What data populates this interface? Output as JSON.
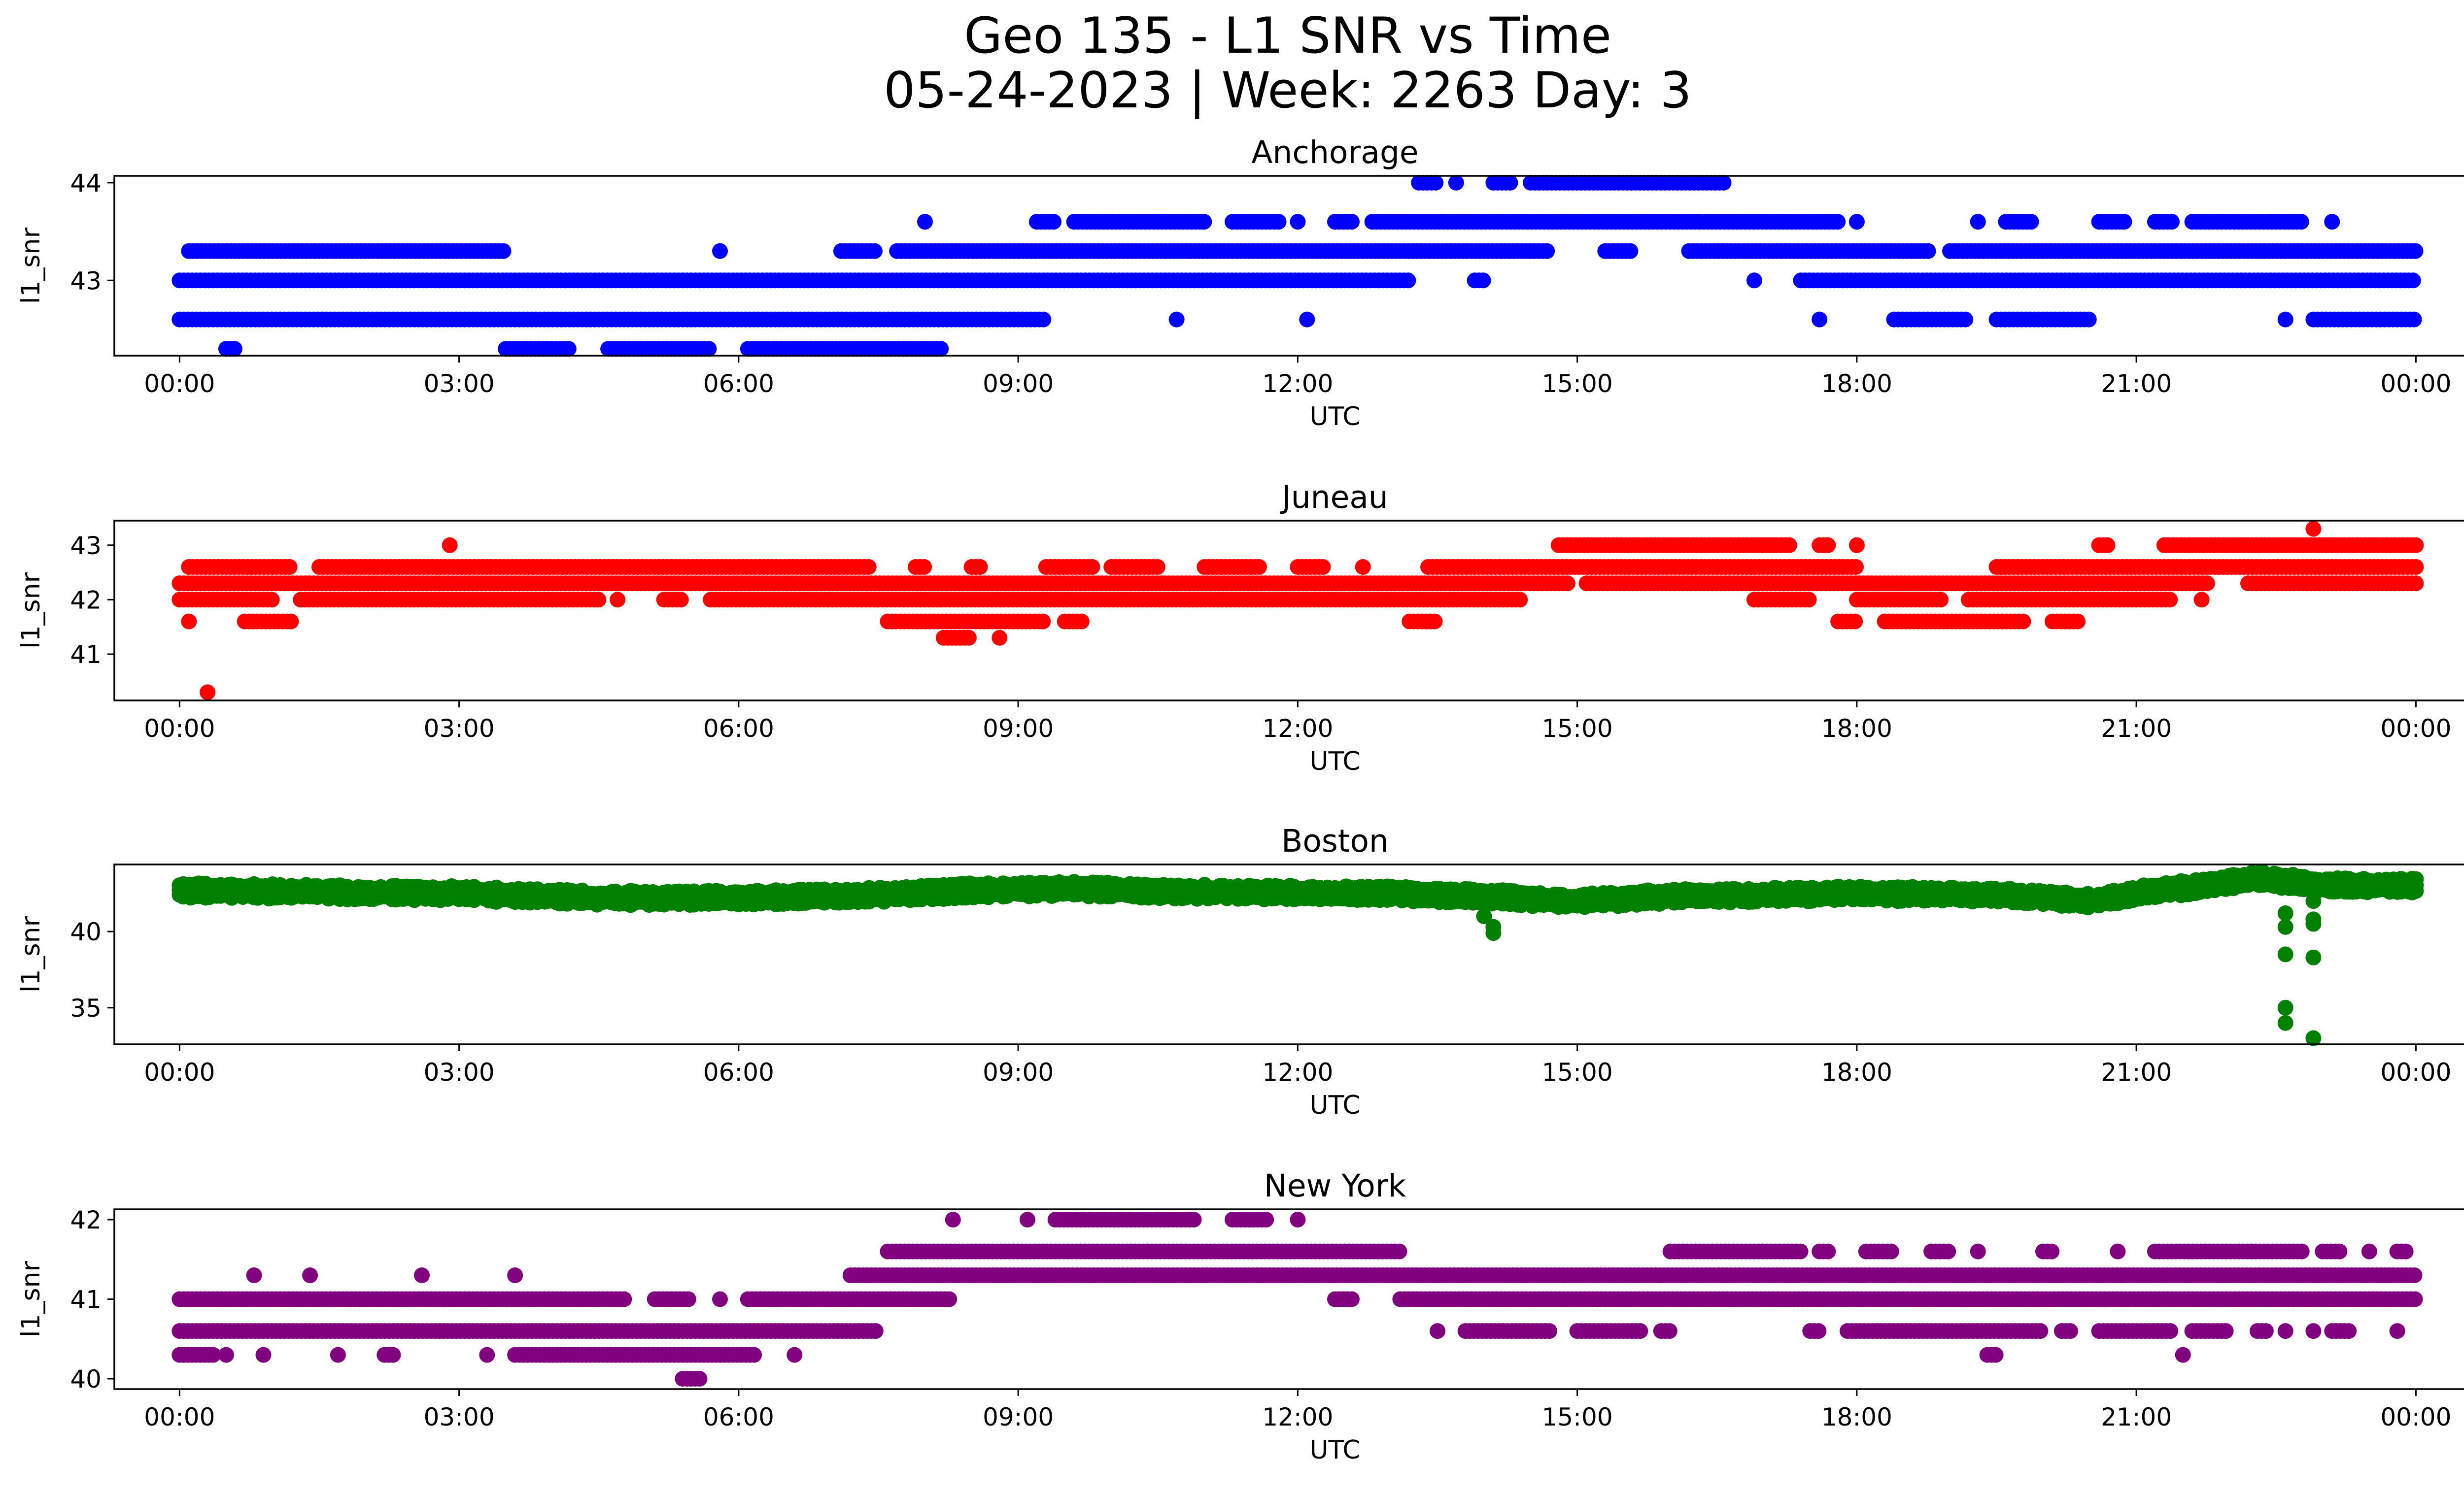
{
  "figure": {
    "title_line1": "Geo 135 - L1 SNR vs Time",
    "title_line2": "05-24-2023 | Week: 2263 Day: 3"
  },
  "chart_data": [
    {
      "type": "scatter",
      "title": "Anchorage",
      "xlabel": "UTC",
      "ylabel": "l1_snr",
      "color": "#0000ff",
      "x_ticks": [
        "00:00",
        "03:00",
        "06:00",
        "09:00",
        "12:00",
        "15:00",
        "18:00",
        "21:00",
        "00:00"
      ],
      "x_range_hours": [
        -0.7,
        25.5
      ],
      "y_ticks": [
        43,
        44
      ],
      "ylim": [
        42.23,
        44.07
      ],
      "levels": [
        {
          "y": 42.3,
          "segments": [
            [
              0.5,
              0.6
            ],
            [
              3.5,
              4.2
            ],
            [
              4.6,
              5.7
            ],
            [
              6.1,
              8.2
            ]
          ]
        },
        {
          "y": 42.6,
          "segments": [
            [
              0.0,
              9.3
            ],
            [
              10.7,
              10.7
            ],
            [
              12.1,
              12.1
            ],
            [
              17.6,
              17.6
            ],
            [
              18.4,
              19.2
            ],
            [
              19.5,
              20.5
            ],
            [
              22.6,
              22.6
            ],
            [
              22.9,
              24.0
            ]
          ]
        },
        {
          "y": 43.0,
          "segments": [
            [
              0.0,
              13.2
            ],
            [
              13.9,
              14.0
            ],
            [
              16.9,
              16.9
            ],
            [
              17.4,
              24.0
            ]
          ]
        },
        {
          "y": 43.3,
          "segments": [
            [
              0.1,
              3.5
            ],
            [
              5.8,
              5.8
            ],
            [
              7.1,
              7.5
            ],
            [
              7.7,
              14.7
            ],
            [
              15.3,
              15.6
            ],
            [
              16.2,
              18.8
            ],
            [
              19.0,
              24.0
            ]
          ]
        },
        {
          "y": 43.6,
          "segments": [
            [
              8.0,
              8.0
            ],
            [
              9.2,
              9.4
            ],
            [
              9.6,
              11.0
            ],
            [
              11.3,
              11.8
            ],
            [
              12.0,
              12.0
            ],
            [
              12.4,
              12.6
            ],
            [
              12.8,
              17.8
            ],
            [
              18.0,
              18.0
            ],
            [
              19.3,
              19.3
            ],
            [
              19.6,
              19.9
            ],
            [
              20.6,
              20.9
            ],
            [
              21.2,
              21.4
            ],
            [
              21.6,
              22.8
            ],
            [
              23.1,
              23.1
            ]
          ]
        },
        {
          "y": 44.0,
          "segments": [
            [
              13.3,
              13.5
            ],
            [
              13.7,
              13.7
            ],
            [
              14.1,
              14.3
            ],
            [
              14.5,
              16.6
            ]
          ]
        }
      ]
    },
    {
      "type": "scatter",
      "title": "Juneau",
      "xlabel": "UTC",
      "ylabel": "l1_snr",
      "color": "#ff0000",
      "x_ticks": [
        "00:00",
        "03:00",
        "06:00",
        "09:00",
        "12:00",
        "15:00",
        "18:00",
        "21:00",
        "00:00"
      ],
      "x_range_hours": [
        -0.7,
        25.5
      ],
      "y_ticks": [
        41,
        42,
        43
      ],
      "ylim": [
        40.15,
        43.45
      ],
      "levels": [
        {
          "y": 40.3,
          "segments": [
            [
              0.3,
              0.3
            ]
          ]
        },
        {
          "y": 41.3,
          "segments": [
            [
              8.2,
              8.5
            ],
            [
              8.8,
              8.8
            ]
          ]
        },
        {
          "y": 41.6,
          "segments": [
            [
              0.1,
              0.1
            ],
            [
              0.7,
              1.2
            ],
            [
              7.6,
              9.3
            ],
            [
              9.5,
              9.7
            ],
            [
              13.2,
              13.5
            ],
            [
              17.8,
              18.0
            ],
            [
              18.3,
              19.8
            ],
            [
              20.1,
              20.4
            ]
          ]
        },
        {
          "y": 42.0,
          "segments": [
            [
              0.0,
              1.0
            ],
            [
              1.3,
              4.5
            ],
            [
              4.7,
              4.7
            ],
            [
              5.2,
              5.4
            ],
            [
              5.7,
              14.4
            ],
            [
              16.9,
              17.5
            ],
            [
              18.0,
              18.9
            ],
            [
              19.2,
              21.4
            ],
            [
              21.7,
              21.7
            ]
          ]
        },
        {
          "y": 42.3,
          "segments": [
            [
              0.0,
              14.9
            ],
            [
              15.1,
              21.8
            ],
            [
              22.2,
              24.0
            ]
          ]
        },
        {
          "y": 42.6,
          "segments": [
            [
              0.1,
              1.2
            ],
            [
              1.5,
              7.4
            ],
            [
              7.9,
              8.0
            ],
            [
              8.5,
              8.6
            ],
            [
              9.3,
              9.8
            ],
            [
              10.0,
              10.5
            ],
            [
              11.0,
              11.6
            ],
            [
              12.0,
              12.3
            ],
            [
              12.7,
              12.7
            ],
            [
              13.4,
              18.0
            ],
            [
              19.5,
              24.0
            ]
          ]
        },
        {
          "y": 43.0,
          "segments": [
            [
              2.9,
              2.9
            ],
            [
              14.8,
              17.3
            ],
            [
              17.6,
              17.7
            ],
            [
              18.0,
              18.0
            ],
            [
              20.6,
              20.7
            ],
            [
              21.3,
              24.0
            ]
          ]
        },
        {
          "y": 43.3,
          "segments": [
            [
              22.9,
              22.9
            ]
          ]
        }
      ]
    },
    {
      "type": "scatter",
      "title": "Boston",
      "xlabel": "UTC",
      "ylabel": "l1_snr",
      "color": "#008000",
      "x_ticks": [
        "00:00",
        "03:00",
        "06:00",
        "09:00",
        "12:00",
        "15:00",
        "18:00",
        "21:00",
        "00:00"
      ],
      "x_range_hours": [
        -0.7,
        25.5
      ],
      "y_ticks": [
        35,
        40
      ],
      "ylim": [
        32.6,
        44.4
      ],
      "baseline": [
        [
          0.0,
          42.7
        ],
        [
          1.5,
          42.6
        ],
        [
          3.0,
          42.5
        ],
        [
          4.5,
          42.2
        ],
        [
          6.0,
          42.2
        ],
        [
          7.5,
          42.4
        ],
        [
          8.5,
          42.7
        ],
        [
          9.5,
          42.8
        ],
        [
          11.0,
          42.6
        ],
        [
          13.0,
          42.5
        ],
        [
          14.0,
          42.3
        ],
        [
          15.0,
          42.0
        ],
        [
          16.0,
          42.3
        ],
        [
          18.0,
          42.5
        ],
        [
          19.5,
          42.4
        ],
        [
          20.5,
          42.0
        ],
        [
          21.0,
          42.5
        ],
        [
          21.7,
          43.0
        ],
        [
          22.3,
          43.5
        ],
        [
          22.9,
          43.1
        ],
        [
          24.0,
          43.0
        ]
      ],
      "outliers": [
        {
          "x": 14.0,
          "y": 41.0
        },
        {
          "x": 14.1,
          "y": 40.3
        },
        {
          "x": 14.1,
          "y": 39.9
        },
        {
          "x": 22.6,
          "y": 41.2
        },
        {
          "x": 22.6,
          "y": 40.3
        },
        {
          "x": 22.6,
          "y": 38.5
        },
        {
          "x": 22.6,
          "y": 35.0
        },
        {
          "x": 22.6,
          "y": 34.0
        },
        {
          "x": 22.9,
          "y": 42.0
        },
        {
          "x": 22.9,
          "y": 40.8
        },
        {
          "x": 22.9,
          "y": 40.5
        },
        {
          "x": 22.9,
          "y": 38.3
        },
        {
          "x": 22.9,
          "y": 33.0
        }
      ]
    },
    {
      "type": "scatter",
      "title": "New York",
      "xlabel": "UTC",
      "ylabel": "l1_snr",
      "color": "#800080",
      "x_ticks": [
        "00:00",
        "03:00",
        "06:00",
        "09:00",
        "12:00",
        "15:00",
        "18:00",
        "21:00",
        "00:00"
      ],
      "x_range_hours": [
        -0.7,
        25.5
      ],
      "y_ticks": [
        40,
        41,
        42
      ],
      "ylim": [
        39.87,
        42.13
      ],
      "levels": [
        {
          "y": 40.0,
          "segments": [
            [
              5.4,
              5.6
            ]
          ]
        },
        {
          "y": 40.3,
          "segments": [
            [
              0.0,
              0.4
            ],
            [
              0.5,
              0.5
            ],
            [
              0.9,
              0.9
            ],
            [
              1.7,
              1.7
            ],
            [
              2.2,
              2.3
            ],
            [
              3.3,
              3.3
            ],
            [
              3.6,
              6.2
            ],
            [
              6.6,
              6.6
            ],
            [
              19.4,
              19.5
            ],
            [
              21.5,
              21.5
            ]
          ]
        },
        {
          "y": 40.6,
          "segments": [
            [
              0.0,
              7.5
            ],
            [
              13.5,
              13.5
            ],
            [
              13.8,
              14.7
            ],
            [
              15.0,
              15.7
            ],
            [
              15.9,
              16.0
            ],
            [
              17.5,
              17.6
            ],
            [
              17.9,
              20.0
            ],
            [
              20.2,
              20.3
            ],
            [
              20.6,
              21.4
            ],
            [
              21.6,
              22.0
            ],
            [
              22.3,
              22.4
            ],
            [
              22.6,
              22.6
            ],
            [
              22.9,
              22.9
            ],
            [
              23.1,
              23.3
            ],
            [
              23.8,
              23.8
            ]
          ]
        },
        {
          "y": 41.0,
          "segments": [
            [
              0.0,
              4.8
            ],
            [
              5.1,
              5.5
            ],
            [
              5.8,
              5.8
            ],
            [
              6.1,
              8.3
            ],
            [
              12.4,
              12.6
            ],
            [
              13.1,
              24.0
            ]
          ]
        },
        {
          "y": 41.3,
          "segments": [
            [
              0.8,
              0.8
            ],
            [
              1.4,
              1.4
            ],
            [
              2.6,
              2.6
            ],
            [
              3.6,
              3.6
            ],
            [
              7.2,
              24.0
            ]
          ]
        },
        {
          "y": 41.6,
          "segments": [
            [
              7.6,
              13.1
            ],
            [
              16.0,
              17.4
            ],
            [
              17.6,
              17.7
            ],
            [
              18.1,
              18.4
            ],
            [
              18.8,
              19.0
            ],
            [
              19.3,
              19.3
            ],
            [
              20.0,
              20.1
            ],
            [
              20.8,
              20.8
            ],
            [
              21.2,
              22.8
            ],
            [
              23.0,
              23.2
            ],
            [
              23.5,
              23.5
            ],
            [
              23.8,
              23.9
            ]
          ]
        },
        {
          "y": 42.0,
          "segments": [
            [
              8.3,
              8.3
            ],
            [
              9.1,
              9.1
            ],
            [
              9.4,
              10.9
            ],
            [
              11.3,
              11.7
            ],
            [
              12.0,
              12.0
            ]
          ]
        }
      ]
    }
  ]
}
